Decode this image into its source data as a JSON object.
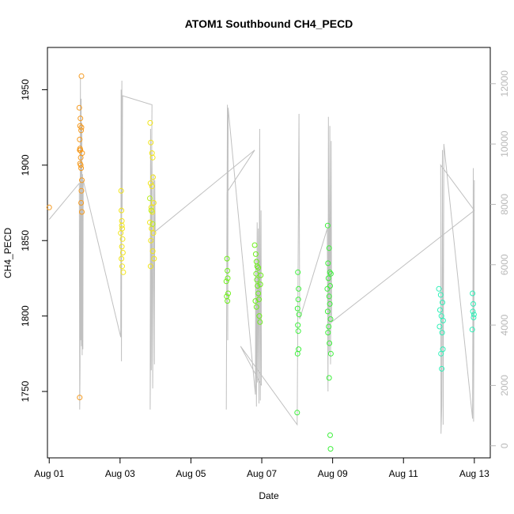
{
  "chart_data": {
    "type": "scatter",
    "title": "ATOM1 Southbound CH4_PECD",
    "xlabel": "Date",
    "ylabel": "CH4_PECD",
    "x_ticks": [
      {
        "day": 1,
        "label": "Aug 01"
      },
      {
        "day": 3,
        "label": "Aug 03"
      },
      {
        "day": 5,
        "label": "Aug 05"
      },
      {
        "day": 7,
        "label": "Aug 07"
      },
      {
        "day": 9,
        "label": "Aug 09"
      },
      {
        "day": 11,
        "label": "Aug 11"
      },
      {
        "day": 13,
        "label": "Aug 13"
      }
    ],
    "xlim": [
      0.95,
      13.45
    ],
    "ylim": [
      1706,
      1978
    ],
    "y_ticks": [
      1750,
      1800,
      1850,
      1900,
      1950
    ],
    "y2lim": [
      -400,
      13200
    ],
    "y2_ticks": [
      0,
      2000,
      4000,
      6000,
      8000,
      10000,
      12000
    ],
    "grid": false,
    "scatter_series": [
      {
        "color": "#f59a1f",
        "points": [
          [
            1.0,
            1872
          ],
          [
            1.86,
            1746
          ],
          [
            1.85,
            1938
          ],
          [
            1.87,
            1926
          ],
          [
            1.88,
            1931
          ],
          [
            1.9,
            1923
          ],
          [
            1.91,
            1925
          ],
          [
            1.86,
            1917
          ],
          [
            1.87,
            1911
          ],
          [
            1.88,
            1910
          ],
          [
            1.89,
            1905
          ],
          [
            1.87,
            1901
          ],
          [
            1.9,
            1898
          ],
          [
            1.93,
            1908
          ],
          [
            1.92,
            1890
          ],
          [
            1.91,
            1883
          ],
          [
            1.9,
            1875
          ],
          [
            1.92,
            1869
          ],
          [
            1.86,
            1910
          ],
          [
            1.89,
            1900
          ],
          [
            1.91,
            1959
          ]
        ]
      },
      {
        "color": "#f2e51a",
        "points": [
          [
            3.03,
            1883
          ],
          [
            3.04,
            1870
          ],
          [
            3.05,
            1863
          ],
          [
            3.06,
            1858
          ],
          [
            3.02,
            1855
          ],
          [
            3.07,
            1851
          ],
          [
            3.05,
            1846
          ],
          [
            3.08,
            1842
          ],
          [
            3.04,
            1838
          ],
          [
            3.06,
            1833
          ],
          [
            3.09,
            1829
          ],
          [
            3.05,
            1860
          ],
          [
            3.85,
            1928
          ],
          [
            3.87,
            1915
          ],
          [
            3.9,
            1908
          ],
          [
            3.92,
            1905
          ],
          [
            3.86,
            1888
          ],
          [
            3.9,
            1886
          ],
          [
            3.93,
            1892
          ],
          [
            3.95,
            1875
          ],
          [
            3.88,
            1872
          ],
          [
            3.91,
            1869
          ],
          [
            3.84,
            1862
          ],
          [
            3.89,
            1858
          ],
          [
            3.94,
            1855
          ],
          [
            3.87,
            1850
          ],
          [
            3.92,
            1843
          ],
          [
            3.96,
            1838
          ],
          [
            3.86,
            1833
          ]
        ]
      },
      {
        "color": "#b8ee1c",
        "points": [
          [
            3.84,
            1878
          ],
          [
            3.88,
            1870
          ],
          [
            3.92,
            1861
          ]
        ]
      },
      {
        "color": "#6ef01a",
        "points": [
          [
            6.02,
            1838
          ],
          [
            6.03,
            1830
          ],
          [
            6.04,
            1825
          ],
          [
            6.0,
            1823
          ],
          [
            6.05,
            1815
          ],
          [
            6.03,
            1810
          ],
          [
            6.01,
            1813
          ],
          [
            6.8,
            1847
          ],
          [
            6.83,
            1841
          ],
          [
            6.85,
            1836
          ],
          [
            6.87,
            1833
          ],
          [
            6.84,
            1828
          ],
          [
            6.86,
            1824
          ],
          [
            6.88,
            1820
          ],
          [
            6.9,
            1815
          ],
          [
            6.92,
            1811
          ],
          [
            6.85,
            1806
          ],
          [
            6.93,
            1800
          ],
          [
            6.95,
            1796
          ],
          [
            6.9,
            1832
          ],
          [
            6.96,
            1821
          ],
          [
            6.82,
            1810
          ],
          [
            6.97,
            1827
          ]
        ]
      },
      {
        "color": "#3ef03c",
        "points": [
          [
            8.02,
            1829
          ],
          [
            8.04,
            1818
          ],
          [
            8.03,
            1811
          ],
          [
            8.01,
            1805
          ],
          [
            8.05,
            1801
          ],
          [
            8.02,
            1794
          ],
          [
            8.03,
            1790
          ],
          [
            8.04,
            1778
          ],
          [
            8.01,
            1775
          ],
          [
            8.0,
            1736
          ],
          [
            8.86,
            1860
          ],
          [
            8.9,
            1845
          ],
          [
            8.87,
            1835
          ],
          [
            8.92,
            1829
          ],
          [
            8.88,
            1825
          ],
          [
            8.93,
            1820
          ],
          [
            8.85,
            1818
          ],
          [
            8.9,
            1813
          ],
          [
            8.92,
            1808
          ],
          [
            8.86,
            1803
          ],
          [
            8.94,
            1798
          ],
          [
            8.89,
            1793
          ],
          [
            8.87,
            1789
          ],
          [
            8.91,
            1782
          ],
          [
            8.95,
            1775
          ],
          [
            8.9,
            1759
          ],
          [
            8.93,
            1721
          ],
          [
            8.94,
            1712
          ],
          [
            8.95,
            1828
          ]
        ]
      },
      {
        "color": "#2ff0b8",
        "points": [
          [
            12.0,
            1818
          ],
          [
            12.05,
            1814
          ],
          [
            12.1,
            1809
          ],
          [
            12.03,
            1804
          ],
          [
            12.07,
            1800
          ],
          [
            12.12,
            1797
          ],
          [
            12.02,
            1793
          ],
          [
            12.09,
            1789
          ],
          [
            12.11,
            1778
          ],
          [
            12.06,
            1775
          ],
          [
            12.08,
            1765
          ],
          [
            12.95,
            1815
          ],
          [
            12.97,
            1808
          ],
          [
            12.96,
            1803
          ],
          [
            12.99,
            1801
          ],
          [
            12.94,
            1791
          ],
          [
            12.98,
            1799
          ]
        ]
      }
    ],
    "secondary_series": {
      "color": "#c0c0c0",
      "points": [
        [
          1.0,
          7500
        ],
        [
          1.85,
          8700
        ],
        [
          1.86,
          1200
        ],
        [
          1.87,
          2500
        ],
        [
          1.88,
          12200
        ],
        [
          1.89,
          3500
        ],
        [
          1.9,
          11500
        ],
        [
          1.91,
          3300
        ],
        [
          1.92,
          10700
        ],
        [
          1.93,
          3000
        ],
        [
          1.94,
          9000
        ],
        [
          1.95,
          3200
        ],
        [
          1.96,
          8800
        ],
        [
          3.02,
          3600
        ],
        [
          3.03,
          11800
        ],
        [
          3.04,
          2800
        ],
        [
          3.05,
          12100
        ],
        [
          3.06,
          7800
        ],
        [
          3.07,
          11600
        ],
        [
          3.9,
          11300
        ],
        [
          3.85,
          1200
        ],
        [
          3.86,
          10500
        ],
        [
          3.88,
          2500
        ],
        [
          3.9,
          9800
        ],
        [
          3.92,
          1900
        ],
        [
          3.95,
          9000
        ],
        [
          3.97,
          2700
        ],
        [
          3.98,
          8800
        ],
        [
          3.99,
          7100
        ],
        [
          6.8,
          9800
        ],
        [
          6.02,
          8400
        ],
        [
          6.0,
          1200
        ],
        [
          6.03,
          11300
        ],
        [
          6.04,
          3500
        ],
        [
          6.05,
          11200
        ],
        [
          6.82,
          1700
        ],
        [
          6.83,
          6200
        ],
        [
          6.85,
          1300
        ],
        [
          6.87,
          7400
        ],
        [
          6.88,
          2100
        ],
        [
          6.9,
          7200
        ],
        [
          6.92,
          1400
        ],
        [
          6.94,
          10500
        ],
        [
          6.96,
          1500
        ],
        [
          6.98,
          7800
        ],
        [
          6.99,
          2000
        ],
        [
          6.4,
          3300
        ],
        [
          8.0,
          700
        ],
        [
          8.05,
          11000
        ],
        [
          8.07,
          4200
        ],
        [
          8.85,
          7200
        ],
        [
          8.87,
          1800
        ],
        [
          8.88,
          10900
        ],
        [
          8.9,
          3100
        ],
        [
          8.92,
          10600
        ],
        [
          8.94,
          2700
        ],
        [
          8.96,
          10100
        ],
        [
          8.97,
          4100
        ],
        [
          13.0,
          7800
        ],
        [
          12.05,
          9300
        ],
        [
          12.06,
          400
        ],
        [
          12.08,
          1300
        ],
        [
          12.1,
          9800
        ],
        [
          12.12,
          700
        ],
        [
          12.14,
          10000
        ],
        [
          12.95,
          900
        ],
        [
          12.97,
          9200
        ],
        [
          12.98,
          800
        ],
        [
          13.0,
          8800
        ]
      ]
    }
  }
}
